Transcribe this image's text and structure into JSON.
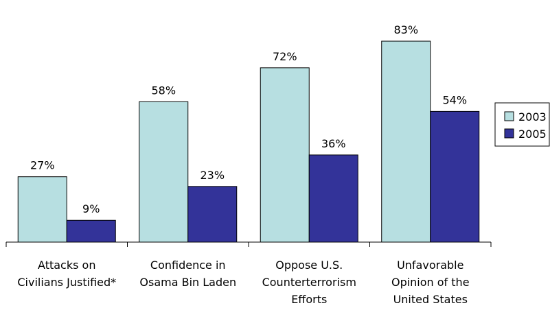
{
  "chart_data": {
    "type": "bar",
    "categories": [
      [
        "Attacks on",
        "Civilians Justified*"
      ],
      [
        "Confidence in",
        "Osama Bin Laden"
      ],
      [
        "Oppose U.S.",
        "Counterterrorism",
        "Efforts"
      ],
      [
        "Unfavorable",
        "Opinion of the",
        "United States"
      ]
    ],
    "series": [
      {
        "name": "2003",
        "values": [
          27,
          58,
          72,
          83
        ],
        "labels": [
          "27%",
          "58%",
          "72%",
          "83%"
        ],
        "color": "#b7dfe1"
      },
      {
        "name": "2005",
        "values": [
          9,
          23,
          36,
          54
        ],
        "labels": [
          "9%",
          "23%",
          "36%",
          "54%"
        ],
        "color": "#333399"
      }
    ],
    "ylim": [
      0,
      100
    ],
    "grid": false,
    "legend_position": "right",
    "title": "",
    "xlabel": "",
    "ylabel": ""
  }
}
